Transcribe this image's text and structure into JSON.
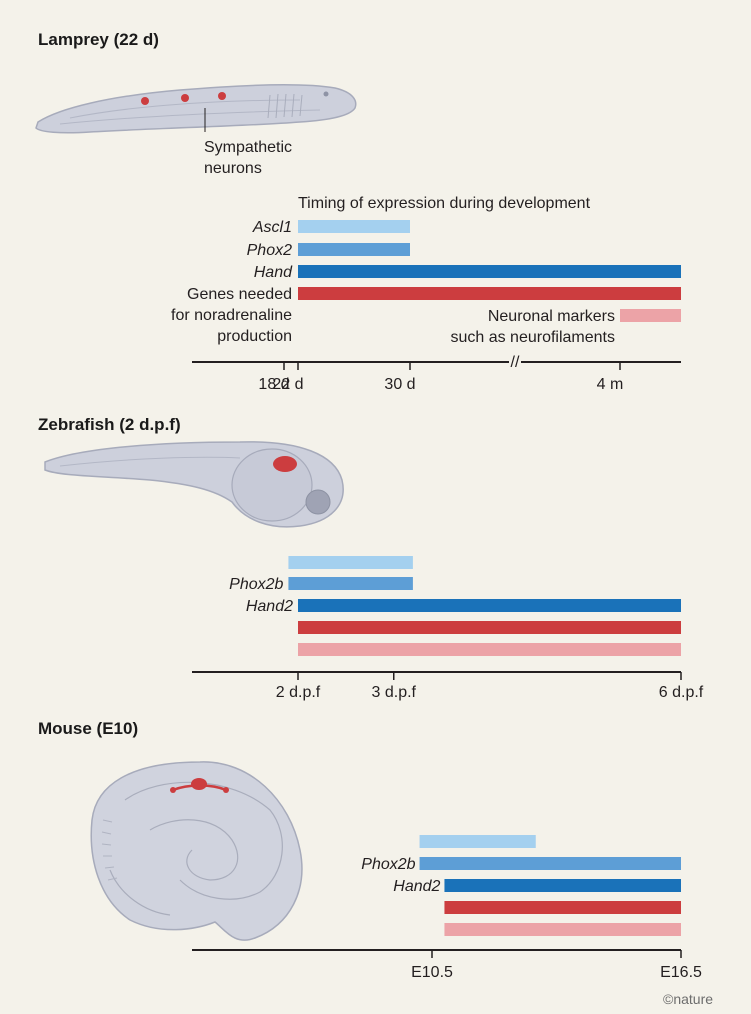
{
  "colors": {
    "light_blue": "#a4d0ef",
    "mid_blue": "#5d9ed6",
    "dark_blue": "#1a72b9",
    "red": "#cc3d3f",
    "pink": "#eca3a7",
    "axis": "#231f20",
    "background": "#f4f2ea"
  },
  "credit": "©nature",
  "chart_data": [
    {
      "type": "bar",
      "title": "Lamprey (22 d)",
      "annotation": "Sympathetic\nneurons",
      "subtitle": "Timing of expression during development",
      "axis_break": "//",
      "ticks": [
        "18 d",
        "22 d",
        "30 d",
        "4 m"
      ],
      "series": [
        {
          "name": "Ascl1",
          "italic": true,
          "color": "light_blue",
          "start": "22 d",
          "end": "30 d"
        },
        {
          "name": "Phox2",
          "italic": true,
          "color": "mid_blue",
          "start": "22 d",
          "end": "30 d"
        },
        {
          "name": "Hand",
          "italic": true,
          "color": "dark_blue",
          "start": "22 d",
          "end": "beyond 4 m"
        },
        {
          "name": "Genes needed\nfor noradrenaline\nproduction",
          "italic": false,
          "color": "red",
          "start": "22 d",
          "end": "beyond 4 m"
        },
        {
          "name": "Neuronal markers\nsuch as neurofilaments",
          "italic": false,
          "color": "pink",
          "start": "4 m",
          "end": "beyond 4 m"
        }
      ]
    },
    {
      "type": "bar",
      "title": "Zebrafish (2 d.p.f)",
      "ticks": [
        "2 d.p.f",
        "3 d.p.f",
        "6 d.p.f"
      ],
      "series": [
        {
          "name": "",
          "italic": true,
          "color": "light_blue",
          "start": 1.9,
          "end": 3.2
        },
        {
          "name": "Phox2b",
          "italic": true,
          "color": "mid_blue",
          "start": 1.9,
          "end": 3.2
        },
        {
          "name": "Hand2",
          "italic": true,
          "color": "dark_blue",
          "start": 2,
          "end": 6
        },
        {
          "name": "",
          "italic": false,
          "color": "red",
          "start": 2,
          "end": 6
        },
        {
          "name": "",
          "italic": false,
          "color": "pink",
          "start": 2,
          "end": 6
        }
      ]
    },
    {
      "type": "bar",
      "title": "Mouse (E10)",
      "ticks": [
        "E10.5",
        "E16.5"
      ],
      "series": [
        {
          "name": "",
          "italic": true,
          "color": "light_blue",
          "start": 10.2,
          "end": 13.0
        },
        {
          "name": "Phox2b",
          "italic": true,
          "color": "mid_blue",
          "start": 10.2,
          "end": 16.5
        },
        {
          "name": "Hand2",
          "italic": true,
          "color": "dark_blue",
          "start": 10.8,
          "end": 16.5
        },
        {
          "name": "",
          "italic": false,
          "color": "red",
          "start": 10.8,
          "end": 16.5
        },
        {
          "name": "",
          "italic": false,
          "color": "pink",
          "start": 10.8,
          "end": 16.5
        }
      ]
    }
  ]
}
